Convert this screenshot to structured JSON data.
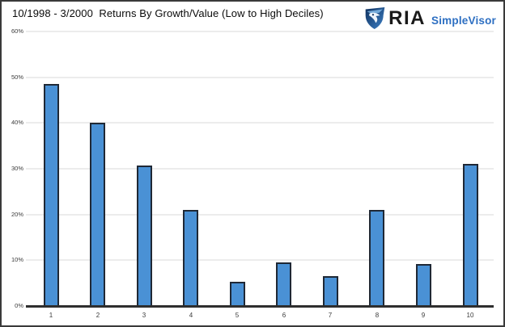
{
  "header": {
    "title": "10/1998 - 3/2000  Returns By Growth/Value (Low to High Deciles)"
  },
  "logo": {
    "brand": "RIA",
    "product": "SimpleVisor",
    "icon": "ria-eagle-shield-icon",
    "brand_color": "#1a1a1a",
    "product_color": "#2d6fc2",
    "icon_dark_blue": "#0e2f5c",
    "icon_light_blue": "#3f83c9"
  },
  "chart_data": {
    "type": "bar",
    "title": "10/1998 - 3/2000  Returns By Growth/Value (Low to High Deciles)",
    "categories": [
      "1",
      "2",
      "3",
      "4",
      "5",
      "6",
      "7",
      "8",
      "9",
      "10"
    ],
    "values": [
      48.5,
      40.0,
      30.7,
      21.0,
      5.3,
      9.6,
      6.5,
      21.0,
      9.2,
      31.1
    ],
    "xlabel": "",
    "ylabel": "",
    "ylim": [
      0,
      60
    ],
    "ytick_step": 10,
    "ytick_labels": [
      "0%",
      "10%",
      "20%",
      "30%",
      "40%",
      "50%",
      "60%"
    ],
    "grid": true,
    "legend": false,
    "bar_fill": "#4a91d5",
    "bar_border": "#1f2835",
    "gridline_color": "#ececec",
    "axis_color": "#2e2e2e"
  }
}
